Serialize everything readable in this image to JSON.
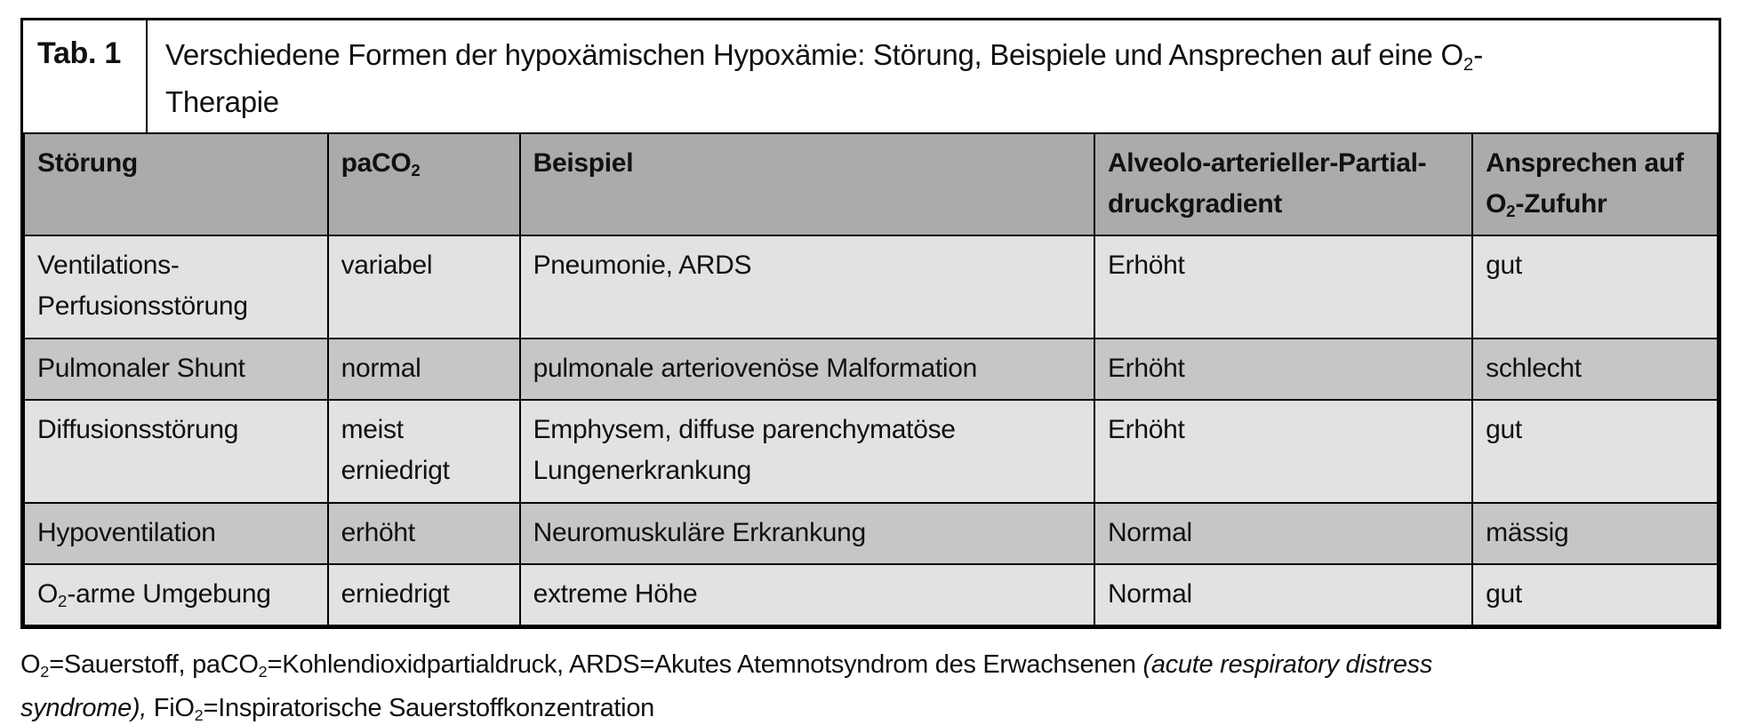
{
  "title": {
    "label": "Tab. 1",
    "line1_pre": "Verschiedene Formen der hypoxämischen Hypoxämie: Störung, Beispiele und Ansprechen auf eine O",
    "line1_sub": "2",
    "line1_post": "-",
    "line2": "Therapie"
  },
  "table": {
    "headers": {
      "stoerung": "Störung",
      "paco2_pre": "paCO",
      "paco2_sub": "2",
      "beispiel": "Beispiel",
      "gradient_line1": "Alveolo-arterieller-Partial-",
      "gradient_line2": "druckgradient",
      "ansprechen_line1": "Ansprechen auf",
      "ansprechen_line2_pre": "O",
      "ansprechen_line2_sub": "2",
      "ansprechen_line2_post": "-Zufuhr"
    },
    "rows": [
      {
        "stoerung": "Ventilations-Perfusionsstörung",
        "paco2": "variabel",
        "beispiel": "Pneumonie, ARDS",
        "gradient": "Erhöht",
        "ansprechen": "gut"
      },
      {
        "stoerung": "Pulmonaler Shunt",
        "paco2": "normal",
        "beispiel": "pulmonale arteriovenöse Malformation",
        "gradient": "Erhöht",
        "ansprechen": "schlecht"
      },
      {
        "stoerung": "Diffusionsstörung",
        "paco2": "meist erniedrigt",
        "beispiel": "Emphysem, diffuse parenchymatöse Lungenerkrankung",
        "gradient": "Erhöht",
        "ansprechen": "gut"
      },
      {
        "stoerung": "Hypoventilation",
        "paco2": "erhöht",
        "beispiel": "Neuromuskuläre Erkrankung",
        "gradient": "Normal",
        "ansprechen": "mässig"
      },
      {
        "stoerung_pre": "O",
        "stoerung_sub": "2",
        "stoerung_post": "-arme Umgebung",
        "paco2": "erniedrigt",
        "beispiel": "extreme Höhe",
        "gradient": "Normal",
        "ansprechen": "gut"
      }
    ]
  },
  "footnote": {
    "l1_r1": "O",
    "l1_s1": "2",
    "l1_r2": "=Sauerstoff, paCO",
    "l1_s2": "2",
    "l1_r3": "=Kohlendioxidpartialdruck, ARDS=Akutes Atemnotsyndrom des Erwachsenen ",
    "l1_italic": "(acute respiratory distress",
    "l2_italic": "syndrome),",
    "l2_r1": " FiO",
    "l2_s1": "2",
    "l2_r2": "=Inspiratorische Sauerstoffkonzentration"
  },
  "colors": {
    "header_bg": "#ababab",
    "row_dark_bg": "#c6c6c6",
    "row_light_bg": "#e2e2e2",
    "border": "#000000",
    "text": "#111111",
    "background": "#ffffff"
  }
}
